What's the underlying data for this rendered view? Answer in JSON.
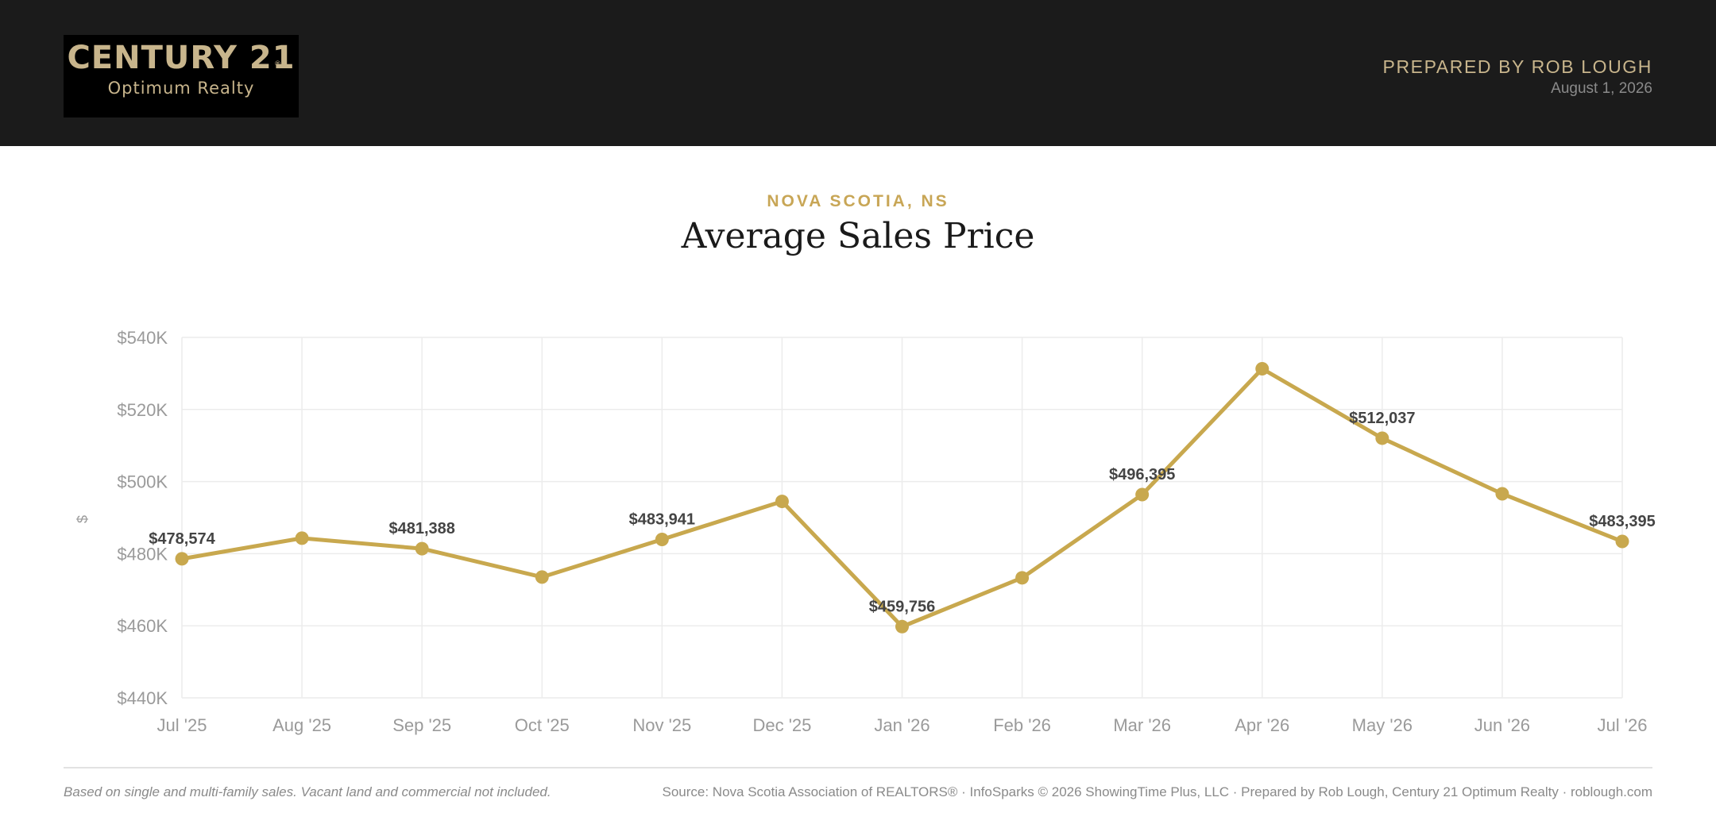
{
  "header": {
    "logo_title": "CENTURY 21",
    "logo_registered": "®",
    "logo_subtitle": "Optimum Realty",
    "prepared_by": "PREPARED BY ROB LOUGH",
    "date": "August 1, 2026"
  },
  "chart_data": {
    "type": "line",
    "region": "NOVA SCOTIA, NS",
    "title": "Average Sales Price",
    "ylabel": "$",
    "xlabel": "",
    "ylim": [
      440000,
      540000
    ],
    "yticks": [
      440000,
      460000,
      480000,
      500000,
      520000,
      540000
    ],
    "ytick_labels": [
      "$440K",
      "$460K",
      "$480K",
      "$500K",
      "$520K",
      "$540K"
    ],
    "categories": [
      "Jul '25",
      "Aug '25",
      "Sep '25",
      "Oct '25",
      "Nov '25",
      "Dec '25",
      "Jan '26",
      "Feb '26",
      "Mar '26",
      "Apr '26",
      "May '26",
      "Jun '26",
      "Jul '26"
    ],
    "series": [
      {
        "values": [
          478574,
          484300,
          481388,
          473500,
          483941,
          494500,
          459756,
          473300,
          496395,
          531300,
          512037,
          496600,
          483395
        ]
      }
    ],
    "data_labels": [
      "$478,574",
      "",
      "$481,388",
      "",
      "$483,941",
      "",
      "$459,756",
      "",
      "$496,395",
      "",
      "$512,037",
      "",
      "$483,395"
    ],
    "grid": true,
    "legend": "none",
    "line_color": "#c8a84e"
  },
  "footer": {
    "note": "Based on single and multi-family sales. Vacant land and commercial not included.",
    "source": "Source: Nova Scotia Association of REALTORS® · InfoSparks © 2026 ShowingTime Plus, LLC · Prepared by Rob Lough, Century 21 Optimum Realty · roblough.com"
  }
}
